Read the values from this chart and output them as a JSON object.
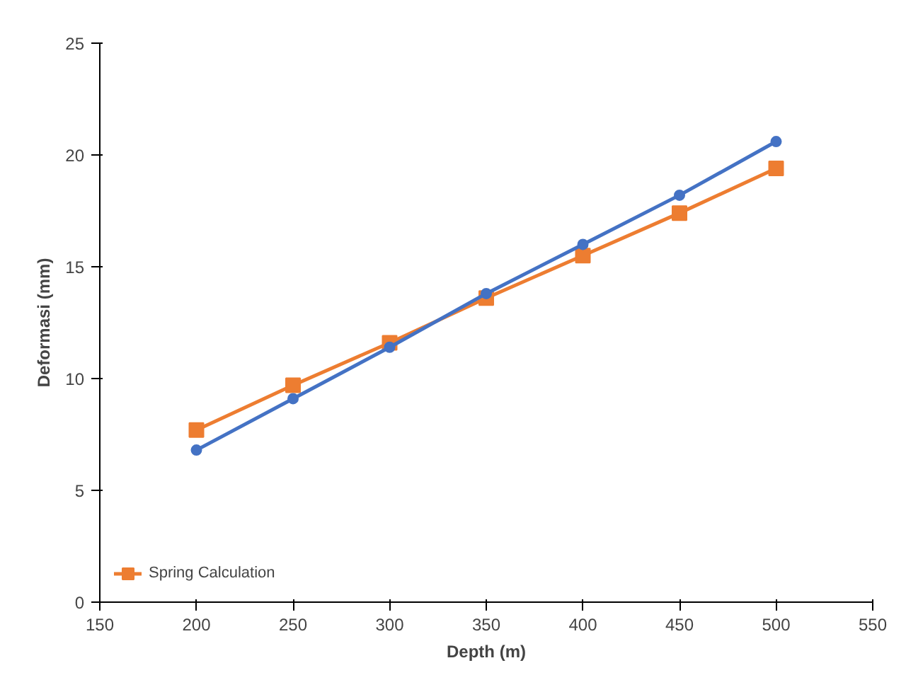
{
  "chart_data": {
    "type": "line",
    "xlabel": "Depth (m)",
    "ylabel": "Deformasi (mm)",
    "x": [
      200,
      250,
      300,
      350,
      400,
      450,
      500
    ],
    "series": [
      {
        "color": "#4472c4",
        "marker": "circle",
        "values": [
          6.8,
          9.1,
          11.4,
          13.8,
          16.0,
          18.2,
          20.6
        ]
      },
      {
        "name": "Spring Calculation",
        "color": "#ed7d31",
        "marker": "square",
        "values": [
          7.7,
          9.7,
          11.6,
          13.6,
          15.5,
          17.4,
          19.4
        ]
      }
    ],
    "xlim": [
      150,
      550
    ],
    "xticks": [
      150,
      200,
      250,
      300,
      350,
      400,
      450,
      500,
      550
    ],
    "ylim": [
      0,
      25
    ],
    "yticks": [
      0,
      5,
      10,
      15,
      20,
      25
    ],
    "grid": false,
    "legend": "bottom left"
  }
}
